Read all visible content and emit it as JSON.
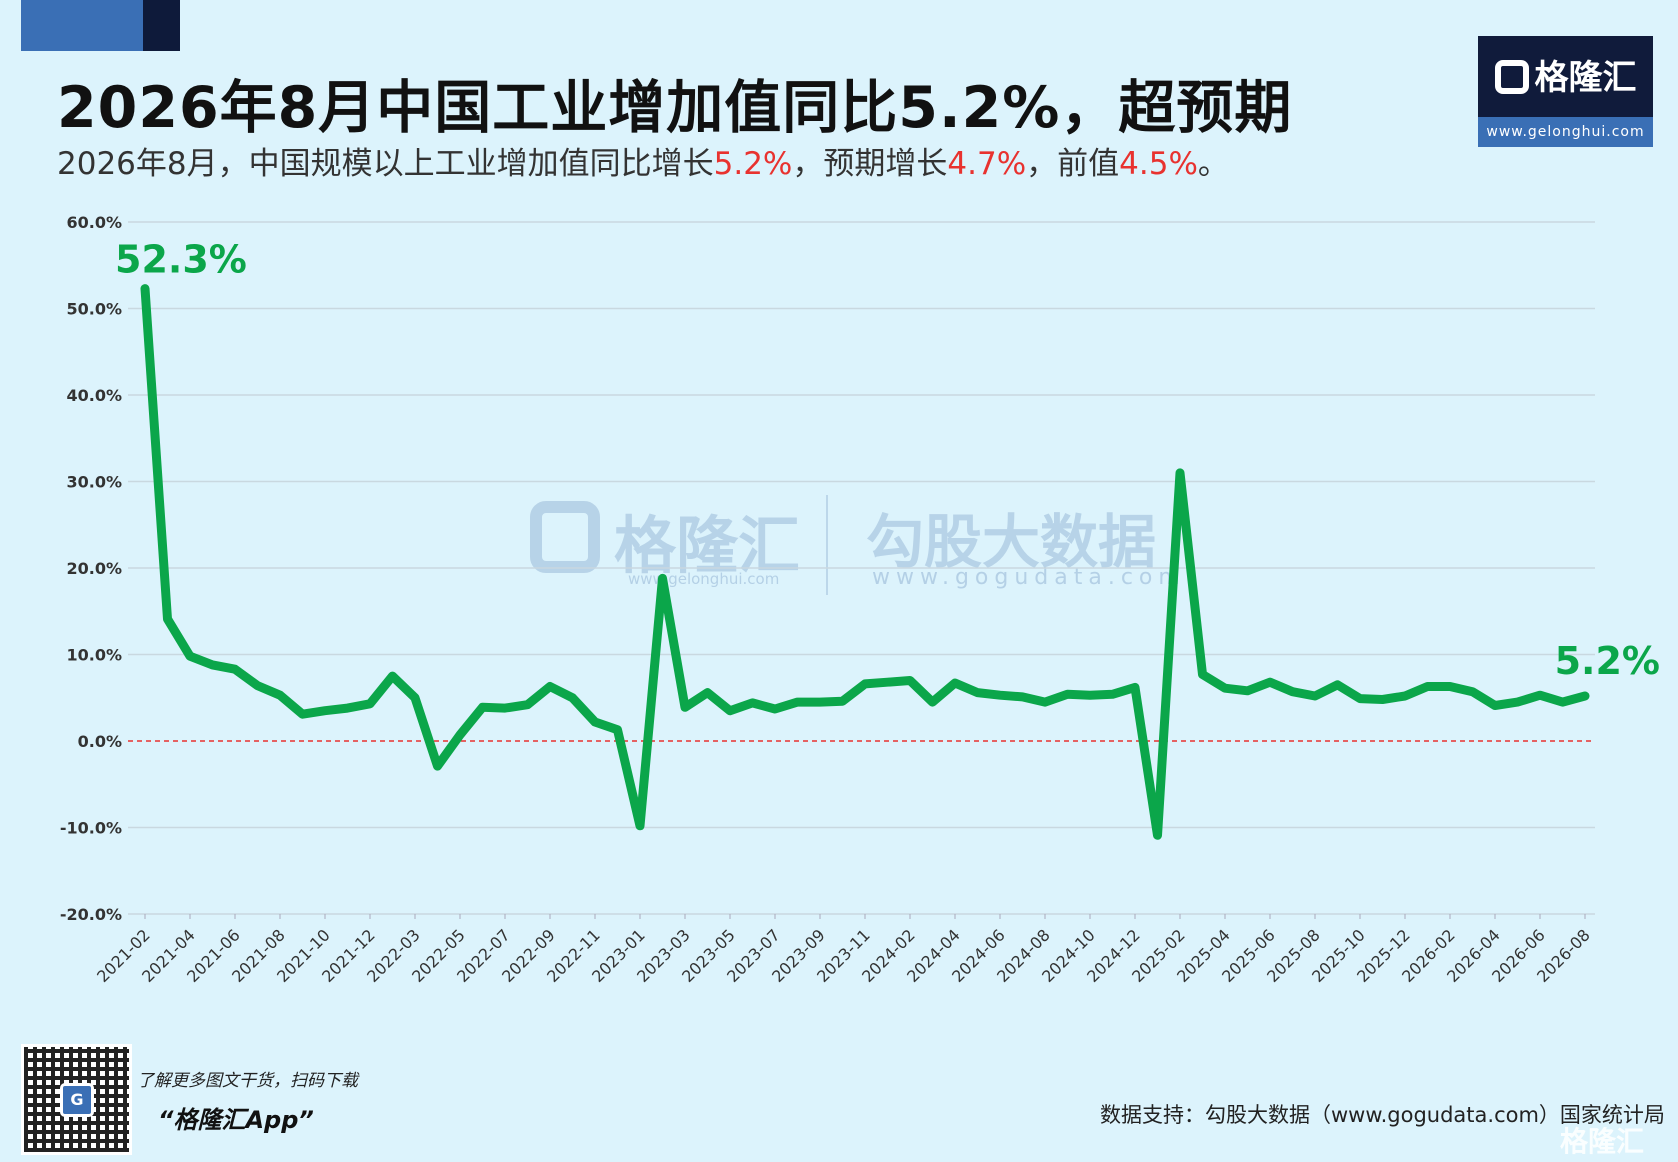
{
  "title": "2026年8月中国工业增加值同比5.2%，超预期",
  "subtitle": {
    "part1": "2026年8月，中国规模以上工业增加值同比增长",
    "actual": "5.2%",
    "part2": "，预期增长",
    "expected": "4.7%",
    "part3": "，前值",
    "previous": "4.5%",
    "part4": "。"
  },
  "logo": {
    "name": "格隆汇",
    "url": "www.gelonghui.com"
  },
  "watermark": {
    "left_name": "格隆汇",
    "left_url": "www.gelonghui.com",
    "right_name": "勾股大数据",
    "right_url": "www.gogudata.com"
  },
  "footer": {
    "promo_line1": "了解更多图文干货，扫码下载",
    "promo_line2": "“格隆汇App”",
    "qr_badge": "G",
    "source": "数据支持：勾股大数据（www.gogudata.com）国家统计局",
    "corner_mark": "格隆汇"
  },
  "colors": {
    "line": "#0ba64a",
    "zero_line": "#e8322f",
    "grid": "#c9d8e0",
    "accent_red": "#e8322f",
    "brand_dark": "#101b3b",
    "brand_blue": "#3a6fb5"
  },
  "chart_data": {
    "type": "line",
    "ylim": [
      -20,
      60
    ],
    "yticks": [
      -20,
      -10,
      0,
      10,
      20,
      30,
      40,
      50,
      60
    ],
    "ytick_labels": [
      "-20.0%",
      "-10.0%",
      "0.0%",
      "10.0%",
      "20.0%",
      "30.0%",
      "40.0%",
      "50.0%",
      "60.0%"
    ],
    "x_tick_labels": [
      "2021-02",
      "2021-04",
      "2021-06",
      "2021-08",
      "2021-10",
      "2021-12",
      "2022-03",
      "2022-05",
      "2022-07",
      "2022-09",
      "2022-11",
      "2023-01",
      "2023-03",
      "2023-05",
      "2023-07",
      "2023-09",
      "2023-11",
      "2024-02",
      "2024-04",
      "2024-06",
      "2024-08",
      "2024-10",
      "2024-12",
      "2025-02",
      "2025-04",
      "2025-06",
      "2025-08",
      "2025-10",
      "2025-12",
      "2026-02",
      "2026-04",
      "2026-06",
      "2026-08"
    ],
    "series": [
      {
        "values": [
          52.3,
          14.1,
          9.8,
          8.8,
          8.3,
          6.4,
          5.3,
          3.1,
          3.5,
          3.8,
          4.3,
          7.5,
          5.0,
          -2.9,
          0.7,
          3.9,
          3.8,
          4.2,
          6.3,
          5.0,
          2.2,
          1.3,
          -9.8,
          18.8,
          3.9,
          5.6,
          3.5,
          4.4,
          3.7,
          4.5,
          4.5,
          4.6,
          6.6,
          6.8,
          7.0,
          4.5,
          6.7,
          5.6,
          5.3,
          5.1,
          4.5,
          5.4,
          5.3,
          5.4,
          6.2,
          -10.9,
          31.0,
          7.7,
          6.1,
          5.8,
          6.8,
          5.7,
          5.2,
          6.5,
          4.9,
          4.8,
          5.2,
          6.3,
          6.3,
          5.7,
          4.1,
          4.5,
          5.3,
          4.5,
          5.2
        ]
      }
    ],
    "annotations": [
      {
        "label": "52.3%",
        "index": 0
      },
      {
        "label": "5.2%",
        "index": 64
      }
    ],
    "grid": true,
    "zero_line": "dashed-red"
  }
}
